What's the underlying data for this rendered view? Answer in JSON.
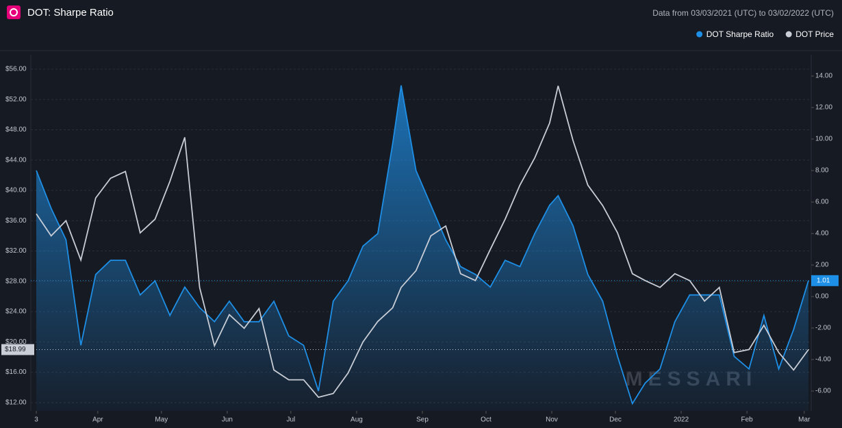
{
  "chart_data": {
    "type": "line",
    "title": "DOT: Sharpe Ratio",
    "subtitle": "Data from 03/03/2021 (UTC) to 03/02/2022 (UTC)",
    "watermark": "MESSARI",
    "x": [
      0,
      7,
      14,
      21,
      28,
      35,
      42,
      49,
      56,
      63,
      70,
      77,
      84,
      91,
      98,
      105,
      112,
      119,
      126,
      133,
      140,
      147,
      154,
      161,
      168,
      172,
      179,
      186,
      193,
      200,
      207,
      214,
      221,
      228,
      235,
      242,
      246,
      253,
      260,
      267,
      274,
      281,
      287,
      294,
      301,
      308,
      315,
      322,
      329,
      336,
      343,
      350,
      357,
      364
    ],
    "xlim": [
      0,
      364
    ],
    "xticks": [
      {
        "value": 0,
        "label": "3"
      },
      {
        "value": 29,
        "label": "Apr"
      },
      {
        "value": 59,
        "label": "May"
      },
      {
        "value": 90,
        "label": "Jun"
      },
      {
        "value": 120,
        "label": "Jul"
      },
      {
        "value": 151,
        "label": "Aug"
      },
      {
        "value": 182,
        "label": "Sep"
      },
      {
        "value": 212,
        "label": "Oct"
      },
      {
        "value": 243,
        "label": "Nov"
      },
      {
        "value": 273,
        "label": "Dec"
      },
      {
        "value": 304,
        "label": "2022"
      },
      {
        "value": 335,
        "label": "Feb"
      },
      {
        "value": 362,
        "label": "Mar"
      }
    ],
    "ylim": [
      10.9,
      57.9
    ],
    "yticks": [
      {
        "value": 12,
        "label": "$12.00"
      },
      {
        "value": 16,
        "label": "$16.00"
      },
      {
        "value": 20,
        "label": "$20.00"
      },
      {
        "value": 24,
        "label": "$24.00"
      },
      {
        "value": 28,
        "label": "$28.00"
      },
      {
        "value": 32,
        "label": "$32.00"
      },
      {
        "value": 36,
        "label": "$36.00"
      },
      {
        "value": 40,
        "label": "$40.00"
      },
      {
        "value": 44,
        "label": "$44.00"
      },
      {
        "value": 48,
        "label": "$48.00"
      },
      {
        "value": 52,
        "label": "$52.00"
      },
      {
        "value": 56,
        "label": "$56.00"
      }
    ],
    "y2lim": [
      -7.26,
      15.35
    ],
    "y2ticks": [
      {
        "value": -6,
        "label": "-6.00"
      },
      {
        "value": -4,
        "label": "-4.00"
      },
      {
        "value": -2,
        "label": "-2.00"
      },
      {
        "value": 0,
        "label": "0.00"
      },
      {
        "value": 2,
        "label": "2.00"
      },
      {
        "value": 4,
        "label": "4.00"
      },
      {
        "value": 6,
        "label": "6.00"
      },
      {
        "value": 8,
        "label": "8.00"
      },
      {
        "value": 10,
        "label": "10.00"
      },
      {
        "value": 12,
        "label": "12.00"
      },
      {
        "value": 14,
        "label": "14.00"
      }
    ],
    "grid": true,
    "legend": "top-right",
    "series": [
      {
        "name": "DOT Sharpe Ratio",
        "color": "#1e8fe6",
        "axis": "y2",
        "area": true,
        "current_value": {
          "value": 1.01,
          "label": "1.01"
        },
        "values": [
          8.0,
          5.6,
          3.6,
          -3.1,
          1.4,
          2.3,
          2.3,
          0.1,
          1.0,
          -1.2,
          0.6,
          -0.7,
          -1.6,
          -0.3,
          -1.6,
          -1.6,
          -0.3,
          -2.5,
          -3.1,
          -6.0,
          -0.3,
          1.0,
          3.2,
          4.0,
          9.7,
          13.4,
          8.0,
          5.8,
          3.6,
          1.9,
          1.4,
          0.6,
          2.3,
          1.9,
          4.0,
          5.8,
          6.4,
          4.5,
          1.4,
          -0.3,
          -3.8,
          -6.8,
          -5.5,
          -4.6,
          -1.6,
          0.1,
          0.1,
          0.1,
          -3.8,
          -4.6,
          -1.2,
          -4.6,
          -2.1,
          1.01
        ]
      },
      {
        "name": "DOT Price",
        "color": "#c8cdd6",
        "axis": "y",
        "current_value": {
          "value": 18.99,
          "label": "$18.99"
        },
        "values": [
          36.9,
          34,
          36,
          30.8,
          39,
          41.6,
          42.5,
          34.4,
          36.2,
          41.2,
          47,
          27.2,
          19.5,
          23.6,
          21.8,
          24.4,
          16.3,
          15,
          15,
          12.7,
          13.2,
          15.9,
          20,
          22.7,
          24.5,
          27.2,
          29.4,
          34,
          35.3,
          29,
          28.1,
          32.2,
          36.2,
          40.7,
          44.3,
          48.9,
          53.8,
          46.6,
          40.7,
          38,
          34.4,
          29,
          28.1,
          27.2,
          29,
          28.1,
          25.4,
          27.2,
          18.6,
          19,
          22.2,
          18.6,
          16.3,
          18.99
        ]
      }
    ]
  }
}
